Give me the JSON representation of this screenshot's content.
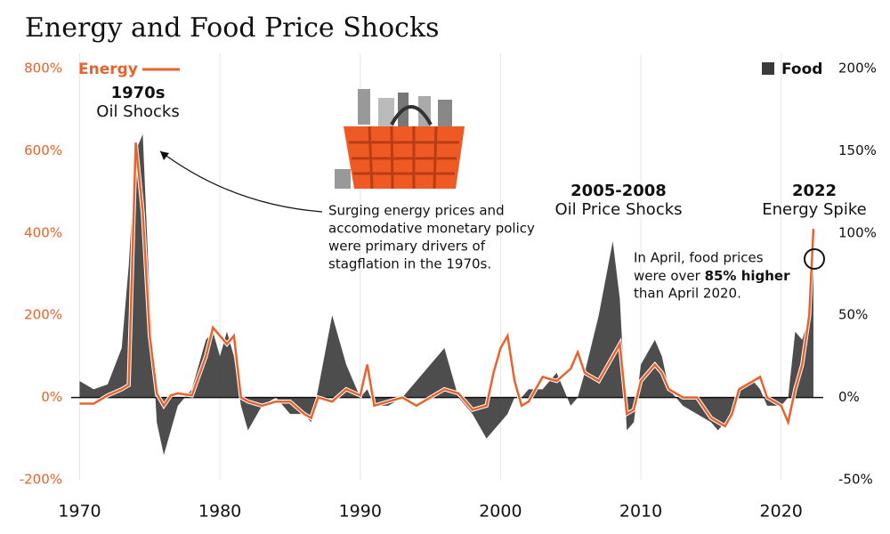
{
  "chart_data": {
    "type": "line-area",
    "title": "Energy and Food Price Shocks",
    "x": [
      1970,
      1971,
      1972,
      1973,
      1973.5,
      1974,
      1974.5,
      1975,
      1975.5,
      1976,
      1976.5,
      1977,
      1978,
      1979,
      1979.5,
      1980,
      1980.5,
      1981,
      1981.5,
      1982,
      1983,
      1984,
      1985,
      1986,
      1986.5,
      1987,
      1988,
      1989,
      1990,
      1990.5,
      1991,
      1992,
      1993,
      1994,
      1995,
      1996,
      1997,
      1998,
      1999,
      1999.5,
      2000,
      2000.5,
      2001,
      2001.5,
      2002,
      2003,
      2004,
      2005,
      2005.5,
      2006,
      2007,
      2008,
      2008.5,
      2009,
      2009.5,
      2010,
      2011,
      2011.5,
      2012,
      2013,
      2014,
      2015,
      2015.5,
      2016,
      2016.5,
      2017,
      2018,
      2018.5,
      2019,
      2020,
      2020.5,
      2021,
      2021.5,
      2022,
      2022.3
    ],
    "series": [
      {
        "name": "Energy",
        "color": "#e8622c",
        "axis": "y",
        "values": [
          -15,
          -15,
          5,
          20,
          30,
          620,
          450,
          150,
          10,
          -20,
          5,
          10,
          5,
          100,
          170,
          150,
          130,
          150,
          0,
          -10,
          -20,
          -10,
          -10,
          -40,
          -50,
          0,
          -10,
          20,
          5,
          80,
          -20,
          -10,
          0,
          -20,
          0,
          20,
          10,
          -30,
          -20,
          60,
          120,
          150,
          40,
          -20,
          -10,
          50,
          40,
          70,
          110,
          60,
          40,
          100,
          130,
          -40,
          -30,
          40,
          80,
          60,
          20,
          0,
          0,
          -50,
          -60,
          -70,
          -40,
          20,
          40,
          50,
          0,
          -20,
          -60,
          20,
          80,
          200,
          410
        ]
      },
      {
        "name": "Food",
        "color": "#3a3a3a",
        "axis": "y2",
        "values": [
          10,
          5,
          8,
          30,
          80,
          150,
          160,
          60,
          -15,
          -35,
          -20,
          -5,
          5,
          35,
          40,
          25,
          40,
          25,
          -5,
          -20,
          -5,
          0,
          -10,
          -10,
          -15,
          5,
          50,
          20,
          0,
          5,
          -5,
          -5,
          0,
          10,
          20,
          30,
          0,
          -10,
          -25,
          -20,
          -15,
          -10,
          0,
          0,
          5,
          5,
          15,
          -5,
          0,
          15,
          50,
          95,
          60,
          -20,
          -15,
          20,
          35,
          25,
          5,
          -5,
          -10,
          -15,
          -20,
          -15,
          -10,
          5,
          10,
          5,
          -5,
          -5,
          0,
          40,
          35,
          50,
          85
        ]
      }
    ],
    "xlim": [
      1969.4,
      2023
    ],
    "xticks": [
      1970,
      1980,
      1990,
      2000,
      2010,
      2020
    ],
    "ylim": [
      -200,
      800
    ],
    "yticks": [
      {
        "value": -200,
        "label": "-200%"
      },
      {
        "value": 0,
        "label": "0%"
      },
      {
        "value": 200,
        "label": "200%"
      },
      {
        "value": 400,
        "label": "400%"
      },
      {
        "value": 600,
        "label": "600%"
      },
      {
        "value": 800,
        "label": "800%"
      }
    ],
    "y2lim": [
      -50,
      200
    ],
    "y2ticks": [
      {
        "value": -50,
        "label": "-50%"
      },
      {
        "value": 0,
        "label": "0%"
      },
      {
        "value": 50,
        "label": "50%"
      },
      {
        "value": 100,
        "label": "100%"
      },
      {
        "value": 150,
        "label": "150%"
      },
      {
        "value": 200,
        "label": "200%"
      }
    ],
    "grid": true,
    "annotations": {
      "oil_shocks_1970s": {
        "heading": "1970s",
        "text": "Oil Shocks"
      },
      "oil_2005_2008": {
        "heading": "2005-2008",
        "text": "Oil Price Shocks"
      },
      "spike_2022": {
        "heading": "2022",
        "text": "Energy Spike"
      },
      "stagflation_note": [
        "Surging energy prices and",
        "accomodative monetary policy",
        "were primary drivers of",
        "stagflation in the 1970s."
      ],
      "food_note": [
        "In April, food prices",
        "were over",
        "85% higher",
        "than April 2020."
      ]
    }
  }
}
